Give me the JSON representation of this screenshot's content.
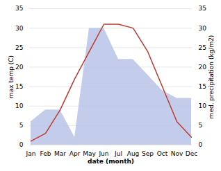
{
  "chart_data": {
    "type": "line",
    "xlabel": "date (month)",
    "ylabel": "max temp (C)",
    "y2label": "med. precipitation (kg/m2)",
    "categories": [
      "Jan",
      "Feb",
      "Mar",
      "Apr",
      "May",
      "Jun",
      "Jul",
      "Aug",
      "Sep",
      "Oct",
      "Nov",
      "Dec"
    ],
    "series": [
      {
        "type": "area",
        "color": "#b8c4e8",
        "axis": "y2",
        "values": [
          6,
          9,
          9,
          2,
          30,
          30,
          22,
          22,
          18,
          14,
          12,
          12
        ]
      },
      {
        "type": "line",
        "color": "#c0392b",
        "values": [
          1,
          3,
          9,
          17,
          24,
          31,
          31,
          30,
          24,
          15,
          6,
          2
        ]
      }
    ],
    "ylim": [
      0,
      35
    ],
    "yticks": [
      0,
      5,
      10,
      15,
      20,
      25,
      30,
      35
    ],
    "y2lim": [
      0,
      35
    ],
    "y2ticks": [
      0,
      5,
      10,
      15,
      20,
      25,
      30,
      35
    ],
    "grid": true
  }
}
